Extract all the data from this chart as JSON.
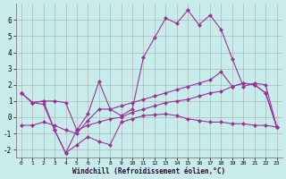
{
  "xlabel": "Windchill (Refroidissement éolien,°C)",
  "background_color": "#c8ecec",
  "grid_color": "#aaaaaa",
  "line_color": "#993399",
  "xlim": [
    -0.5,
    23.5
  ],
  "ylim": [
    -2.5,
    7.0
  ],
  "xticks": [
    0,
    1,
    2,
    3,
    4,
    5,
    6,
    7,
    8,
    9,
    10,
    11,
    12,
    13,
    14,
    15,
    16,
    17,
    18,
    19,
    20,
    21,
    22,
    23
  ],
  "yticks": [
    -2,
    -1,
    0,
    1,
    2,
    3,
    4,
    5,
    6
  ],
  "line1_x": [
    0,
    1,
    2,
    3,
    4,
    5,
    6,
    7,
    8,
    9,
    10,
    11,
    12,
    13,
    14,
    15,
    16,
    17,
    18,
    19,
    20,
    21,
    22,
    23
  ],
  "line1_y": [
    1.5,
    0.9,
    1.0,
    1.0,
    0.9,
    -0.8,
    -0.5,
    -0.3,
    -0.1,
    0.0,
    0.3,
    0.5,
    0.7,
    0.9,
    1.0,
    1.1,
    1.3,
    1.5,
    1.6,
    1.9,
    2.1,
    2.0,
    1.5,
    -0.6
  ],
  "line2_x": [
    0,
    1,
    2,
    3,
    4,
    5,
    6,
    7,
    8,
    9,
    10,
    11,
    12,
    13,
    14,
    15,
    16,
    17,
    18,
    19,
    20,
    21,
    22,
    23
  ],
  "line2_y": [
    1.5,
    0.9,
    1.0,
    -0.8,
    -2.2,
    -1.7,
    -1.2,
    -1.5,
    -1.7,
    -0.3,
    -0.1,
    0.1,
    0.15,
    0.2,
    0.1,
    -0.1,
    -0.2,
    -0.3,
    -0.3,
    -0.4,
    -0.4,
    -0.5,
    -0.5,
    -0.6
  ],
  "line3_x": [
    0,
    1,
    2,
    3,
    4,
    5,
    6,
    7,
    8,
    9,
    10,
    11,
    12,
    13,
    14,
    15,
    16,
    17,
    18,
    19,
    20,
    21,
    22,
    23
  ],
  "line3_y": [
    1.5,
    0.9,
    0.8,
    -0.8,
    -2.2,
    -0.8,
    0.2,
    2.2,
    0.5,
    0.1,
    0.5,
    3.7,
    4.9,
    6.1,
    5.8,
    6.6,
    5.7,
    6.3,
    5.4,
    3.6,
    1.9,
    2.1,
    2.0,
    -0.6
  ],
  "line4_x": [
    0,
    1,
    2,
    3,
    4,
    5,
    6,
    7,
    8,
    9,
    10,
    11,
    12,
    13,
    14,
    15,
    16,
    17,
    18,
    19,
    20,
    21,
    22,
    23
  ],
  "line4_y": [
    -0.5,
    -0.5,
    -0.3,
    -0.5,
    -0.8,
    -1.0,
    -0.2,
    0.5,
    0.5,
    0.7,
    0.9,
    1.1,
    1.3,
    1.5,
    1.7,
    1.9,
    2.1,
    2.3,
    2.8,
    1.9,
    2.1,
    2.0,
    1.5,
    -0.6
  ]
}
